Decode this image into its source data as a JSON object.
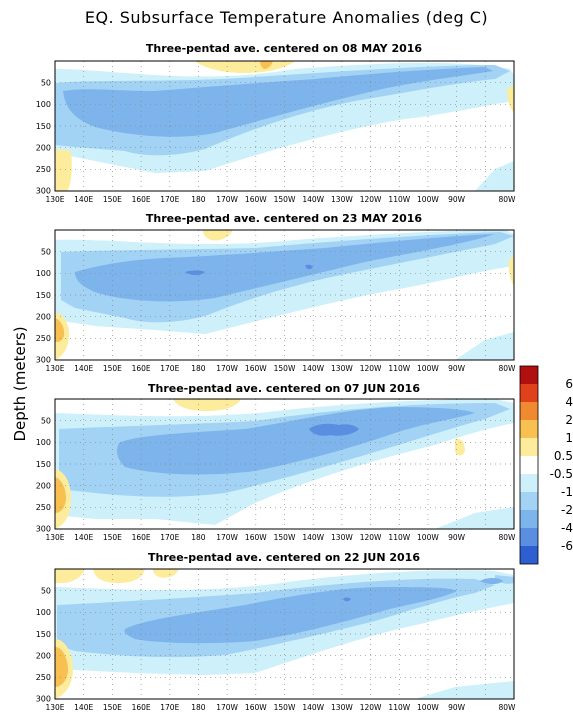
{
  "title": "EQ. Subsurface Temperature Anomalies (deg C)",
  "ylabel": "Depth (meters)",
  "chart_data": [
    {
      "type": "heatmap",
      "title": "Three-pentad ave. centered on 08 MAY 2016",
      "x_ticks": [
        "130E",
        "140E",
        "150E",
        "160E",
        "170E",
        "180",
        "170W",
        "160W",
        "150W",
        "140W",
        "130W",
        "120W",
        "110W",
        "100W",
        "90W",
        "80W"
      ],
      "y_ticks": [
        "50",
        "100",
        "150",
        "200",
        "250",
        "300"
      ],
      "xlim": [
        "130E",
        "80W"
      ],
      "ylim": [
        300,
        0
      ],
      "grid": "dotted"
    },
    {
      "type": "heatmap",
      "title": "Three-pentad ave. centered on 23 MAY 2016",
      "x_ticks": [
        "130E",
        "140E",
        "150E",
        "160E",
        "170E",
        "180",
        "170W",
        "160W",
        "150W",
        "140W",
        "130W",
        "120W",
        "110W",
        "100W",
        "90W",
        "80W"
      ],
      "y_ticks": [
        "50",
        "100",
        "150",
        "200",
        "250",
        "300"
      ],
      "xlim": [
        "130E",
        "80W"
      ],
      "ylim": [
        300,
        0
      ],
      "grid": "dotted"
    },
    {
      "type": "heatmap",
      "title": "Three-pentad ave. centered on 07 JUN 2016",
      "x_ticks": [
        "130E",
        "140E",
        "150E",
        "160E",
        "170E",
        "180",
        "170W",
        "160W",
        "150W",
        "140W",
        "130W",
        "120W",
        "110W",
        "100W",
        "90W",
        "80W"
      ],
      "y_ticks": [
        "50",
        "100",
        "150",
        "200",
        "250",
        "300"
      ],
      "xlim": [
        "130E",
        "80W"
      ],
      "ylim": [
        300,
        0
      ],
      "grid": "dotted"
    },
    {
      "type": "heatmap",
      "title": "Three-pentad ave. centered on 22 JUN 2016",
      "x_ticks": [
        "130E",
        "140E",
        "150E",
        "160E",
        "170E",
        "180",
        "170W",
        "160W",
        "150W",
        "140W",
        "130W",
        "120W",
        "110W",
        "100W",
        "90W",
        "80W"
      ],
      "y_ticks": [
        "50",
        "100",
        "150",
        "200",
        "250",
        "300"
      ],
      "xlim": [
        "130E",
        "80W"
      ],
      "ylim": [
        300,
        0
      ],
      "grid": "dotted"
    }
  ],
  "colorbar": {
    "labels": [
      "6",
      "4",
      "2",
      "1",
      "0.5",
      "-0.5",
      "-1",
      "-2",
      "-4",
      "-6"
    ],
    "colors": [
      "#b01010",
      "#e0401a",
      "#f08a30",
      "#f8c050",
      "#fcec9c",
      "#ffffff",
      "#cdf0fa",
      "#a2d2f4",
      "#7eb4ec",
      "#5a8ee0",
      "#2d5fd0"
    ]
  }
}
